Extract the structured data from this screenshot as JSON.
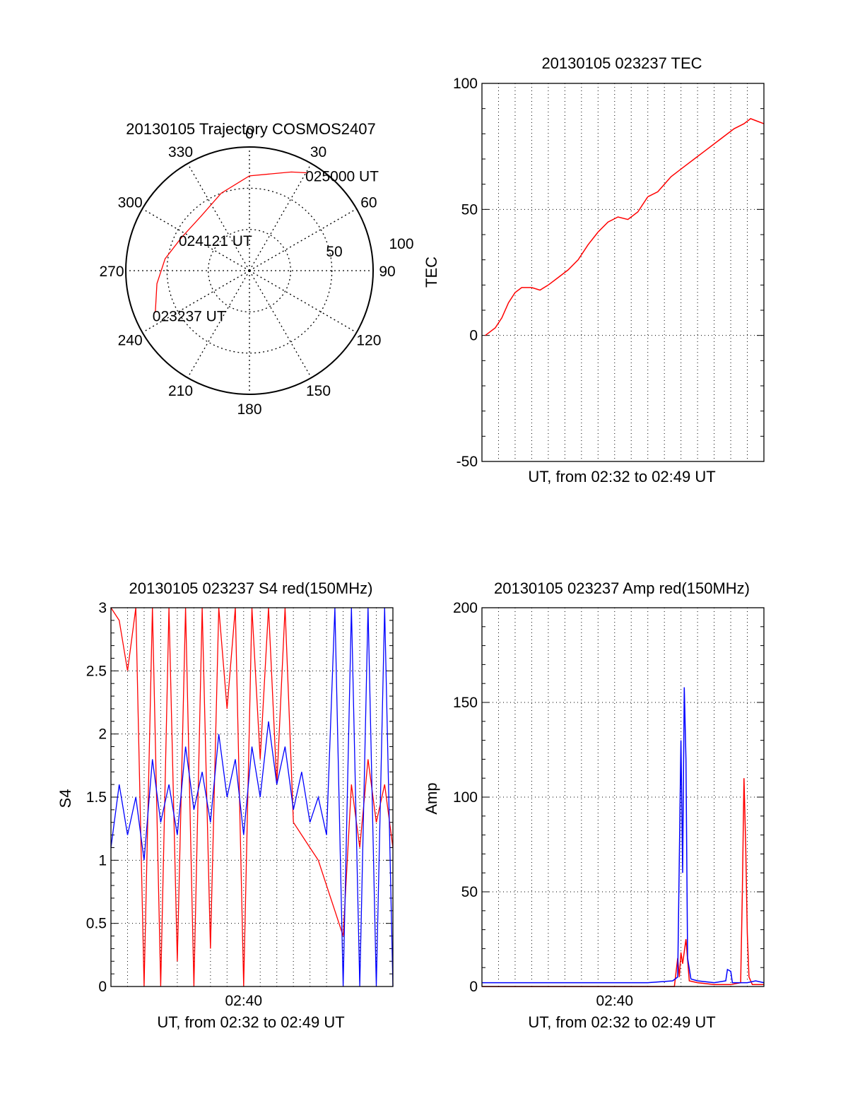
{
  "chart_data": [
    {
      "type": "polar",
      "title": "20130105 Trajectory COSMOS2407",
      "angle_labels": [
        "0",
        "30",
        "60",
        "90",
        "120",
        "150",
        "180",
        "210",
        "240",
        "270",
        "300",
        "330"
      ],
      "radial_labels": [
        "50",
        "100"
      ],
      "trajectory": {
        "color": "#ff0000",
        "points": [
          {
            "azimuth": 246,
            "elevation": 15
          },
          {
            "azimuth": 262,
            "elevation": 22
          },
          {
            "azimuth": 278,
            "elevation": 28
          },
          {
            "azimuth": 296,
            "elevation": 35
          },
          {
            "azimuth": 318,
            "elevation": 37
          },
          {
            "azimuth": 340,
            "elevation": 30
          },
          {
            "azimuth": 360,
            "elevation": 21
          },
          {
            "azimuth": 383,
            "elevation": 12
          },
          {
            "azimuth": 391,
            "elevation": 7
          }
        ],
        "labels": [
          {
            "text": "023237 UT",
            "azimuth": 246,
            "elevation": 15
          },
          {
            "text": "024121 UT",
            "azimuth": 296,
            "elevation": 35
          },
          {
            "text": "025000 UT",
            "azimuth": 391,
            "elevation": 7
          }
        ]
      }
    },
    {
      "type": "line",
      "title": "20130105 023237 TEC",
      "xlabel": "UT, from 02:32 to 02:49 UT",
      "ylabel": "TEC",
      "ylim": [
        -50,
        100
      ],
      "yticks": [
        "100",
        "50",
        "0",
        "-50"
      ],
      "xlim": [
        0,
        17
      ],
      "grid": true,
      "series": [
        {
          "color": "#ff0000",
          "x": [
            0.2,
            0.8,
            1.2,
            1.6,
            2.0,
            2.4,
            3.0,
            3.5,
            4.0,
            4.6,
            5.2,
            5.8,
            6.4,
            7.0,
            7.6,
            8.2,
            8.8,
            9.4,
            10.0,
            10.6,
            11.0,
            11.4,
            11.8,
            12.2,
            12.8,
            13.4,
            14.0,
            14.6,
            15.2,
            15.8,
            16.2,
            16.6,
            17.0
          ],
          "y": [
            0,
            3,
            7,
            13,
            17,
            19,
            19,
            18,
            20,
            23,
            26,
            30,
            36,
            41,
            45,
            47,
            46,
            49,
            55,
            57,
            60,
            63,
            65,
            67,
            70,
            73,
            76,
            79,
            82,
            84,
            86,
            85,
            84
          ]
        }
      ]
    },
    {
      "type": "line",
      "title": "20130105 023237 S4 red(150MHz)",
      "xlabel": "UT, from 02:32 to 02:49 UT",
      "ylabel": "S4",
      "ylim": [
        0,
        3
      ],
      "yticks": [
        "3",
        "2.5",
        "2",
        "1.5",
        "1",
        "0.5",
        "0"
      ],
      "xticks": [
        "02:40"
      ],
      "grid": true,
      "series": [
        {
          "color": "#ff0000",
          "x": [
            0,
            0.5,
            1,
            1.5,
            2,
            2.5,
            3,
            3.5,
            4,
            4.5,
            5,
            5.5,
            6,
            6.5,
            7,
            7.5,
            8,
            8.5,
            9,
            9.5,
            10,
            10.5,
            11,
            11.5,
            12,
            12.5,
            13,
            13.5,
            14,
            14.5,
            15,
            15.5,
            16,
            16.5,
            17
          ],
          "y": [
            3,
            2.9,
            2.5,
            3,
            0,
            3,
            0,
            3,
            0.2,
            3,
            0,
            3,
            0.3,
            3,
            2.2,
            3,
            0,
            3,
            1.8,
            3,
            1.6,
            3,
            1.3,
            1.2,
            1.1,
            1.0,
            0.8,
            0.6,
            0.4,
            1.6,
            1.1,
            1.8,
            1.3,
            1.6,
            1.1
          ]
        },
        {
          "color": "#0000ff",
          "x": [
            0,
            0.5,
            1,
            1.5,
            2,
            2.5,
            3,
            3.5,
            4,
            4.5,
            5,
            5.5,
            6,
            6.5,
            7,
            7.5,
            8,
            8.5,
            9,
            9.5,
            10,
            10.5,
            11,
            11.5,
            12,
            12.5,
            13,
            13.5,
            14,
            14.5,
            15,
            15.5,
            16,
            16.5,
            17
          ],
          "y": [
            1.1,
            1.6,
            1.2,
            1.5,
            1.0,
            1.8,
            1.3,
            1.6,
            1.2,
            1.9,
            1.4,
            1.7,
            1.3,
            2.0,
            1.5,
            1.8,
            1.2,
            1.9,
            1.5,
            2.1,
            1.6,
            1.9,
            1.4,
            1.7,
            1.3,
            1.5,
            1.2,
            3,
            0,
            3,
            0,
            3,
            0,
            3,
            0
          ]
        }
      ]
    },
    {
      "type": "line",
      "title": "20130105 023237 Amp red(150MHz)",
      "xlabel": "UT, from 02:32 to 02:49 UT",
      "ylabel": "Amp",
      "ylim": [
        0,
        200
      ],
      "yticks": [
        "200",
        "150",
        "100",
        "50",
        "0"
      ],
      "xticks": [
        "02:40"
      ],
      "grid": true,
      "series": [
        {
          "color": "#ff0000",
          "x": [
            0,
            11.6,
            11.8,
            11.9,
            12.0,
            12.1,
            12.3,
            12.5,
            13,
            14,
            15,
            15.6,
            15.7,
            15.8,
            15.9,
            16.0,
            16.1,
            16.3,
            17
          ],
          "y": [
            0,
            0,
            15,
            5,
            18,
            12,
            25,
            3,
            2,
            1,
            1,
            2,
            50,
            110,
            75,
            28,
            5,
            1,
            1
          ]
        },
        {
          "color": "#0000ff",
          "x": [
            0,
            2,
            4,
            6,
            8,
            10,
            11.5,
            11.8,
            12.0,
            12.1,
            12.2,
            12.3,
            12.4,
            12.6,
            13,
            14,
            14.7,
            14.8,
            15.0,
            15.1,
            15.3,
            16,
            16.5,
            17
          ],
          "y": [
            2,
            2,
            2,
            2,
            2,
            2,
            3,
            5,
            130,
            60,
            158,
            120,
            15,
            4,
            3,
            2,
            3,
            9,
            8,
            2,
            2,
            2,
            3,
            2
          ]
        }
      ]
    }
  ]
}
